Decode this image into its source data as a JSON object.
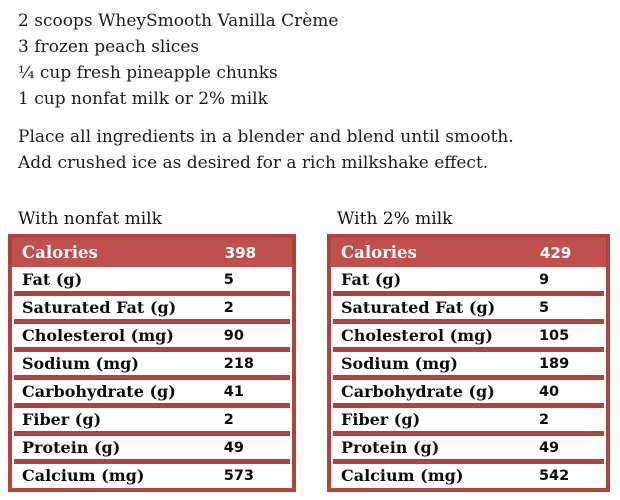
{
  "colors": {
    "accent_red": "#c0504d",
    "border_red": "#b2423e",
    "header_text": "#ffffff",
    "body_text": "#1c1c1c"
  },
  "recipe": {
    "ingredients": [
      "2 scoops WheySmooth Vanilla Crème",
      "3 frozen peach slices",
      "¼ cup fresh pineapple chunks",
      "1 cup nonfat milk or 2% milk"
    ],
    "instructions": [
      "Place all ingredients in a blender and blend until smooth.",
      "Add crushed ice as desired for a rich milkshake effect."
    ]
  },
  "nutrition_tables": [
    {
      "title": "With nonfat milk",
      "rows": [
        {
          "label": "Calories",
          "value": "398",
          "is_header": true
        },
        {
          "label": "Fat (g)",
          "value": "5"
        },
        {
          "label": "Saturated Fat (g)",
          "value": "2"
        },
        {
          "label": "Cholesterol (mg)",
          "value": "90"
        },
        {
          "label": "Sodium (mg)",
          "value": "218"
        },
        {
          "label": "Carbohydrate (g)",
          "value": "41"
        },
        {
          "label": "Fiber (g)",
          "value": "2"
        },
        {
          "label": "Protein (g)",
          "value": "49"
        },
        {
          "label": "Calcium (mg)",
          "value": "573"
        }
      ]
    },
    {
      "title": "With 2% milk",
      "rows": [
        {
          "label": "Calories",
          "value": "429",
          "is_header": true
        },
        {
          "label": "Fat (g)",
          "value": "9"
        },
        {
          "label": "Saturated Fat (g)",
          "value": "5"
        },
        {
          "label": "Cholesterol (mg)",
          "value": "105"
        },
        {
          "label": "Sodium (mg)",
          "value": "189"
        },
        {
          "label": "Carbohydrate (g)",
          "value": "40"
        },
        {
          "label": "Fiber (g)",
          "value": "2"
        },
        {
          "label": "Protein (g)",
          "value": "49"
        },
        {
          "label": "Calcium (mg)",
          "value": "542"
        }
      ]
    }
  ]
}
